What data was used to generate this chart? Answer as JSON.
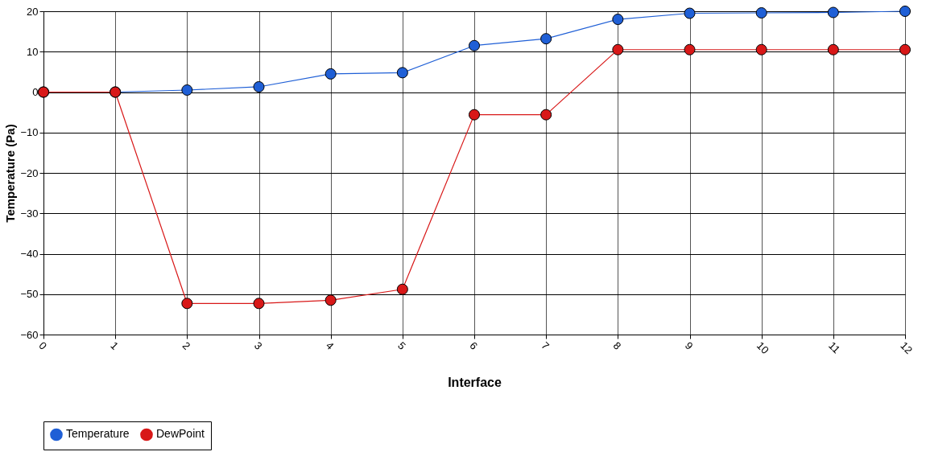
{
  "chart_data": {
    "type": "line",
    "xlabel": "Interface",
    "ylabel": "Temperature (Pa)",
    "x": [
      0,
      1,
      2,
      3,
      4,
      5,
      6,
      7,
      8,
      9,
      10,
      11,
      12
    ],
    "series": [
      {
        "name": "Temperature",
        "color": "#1f5fd6",
        "values": [
          0,
          0,
          0.5,
          1.3,
          4.5,
          4.8,
          11.5,
          13.2,
          18,
          19.5,
          19.6,
          19.7,
          20
        ]
      },
      {
        "name": "DewPoint",
        "color": "#d81818",
        "values": [
          0,
          0,
          -52.3,
          -52.3,
          -51.5,
          -48.8,
          -5.6,
          -5.6,
          10.5,
          10.5,
          10.5,
          10.5,
          10.5
        ]
      }
    ],
    "xlim": [
      0,
      12
    ],
    "xticks": [
      0,
      1,
      2,
      3,
      4,
      5,
      6,
      7,
      8,
      9,
      10,
      11,
      12
    ],
    "ylim": [
      -60,
      20
    ],
    "yticks": [
      -60,
      -50,
      -40,
      -30,
      -20,
      -10,
      0,
      10,
      20
    ],
    "grid": true,
    "legend": "bottom",
    "marker": "circle",
    "line_style": "solid"
  }
}
